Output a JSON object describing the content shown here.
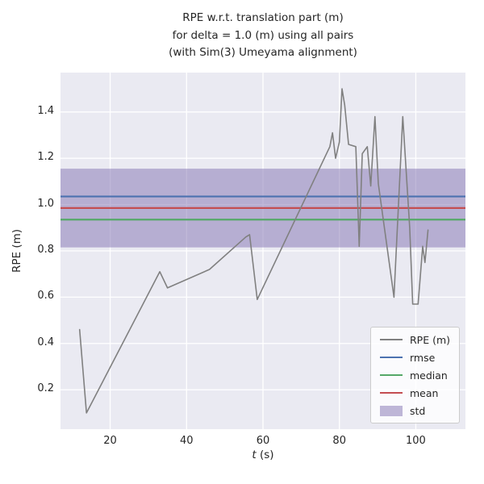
{
  "figure": {
    "title_lines": [
      "RPE w.r.t. translation part (m)",
      "for delta = 1.0 (m) using all pairs",
      "(with Sim(3) Umeyama alignment)"
    ],
    "ylabel": "RPE (m)",
    "xlabel_var": "t",
    "xlabel_unit": " (s)"
  },
  "legend": {
    "items": [
      {
        "label": "RPE (m)",
        "type": "line",
        "color": "#808080"
      },
      {
        "label": "rmse",
        "type": "line",
        "color": "#4c72b0"
      },
      {
        "label": "median",
        "type": "line",
        "color": "#55a868"
      },
      {
        "label": "mean",
        "type": "line",
        "color": "#c44e52"
      },
      {
        "label": "std",
        "type": "patch",
        "color": "#8172b2"
      }
    ]
  },
  "chart_data": {
    "type": "line",
    "title": "RPE w.r.t. translation part (m) for delta = 1.0 (m) using all pairs (with Sim(3) Umeyama alignment)",
    "xlabel": "t (s)",
    "ylabel": "RPE (m)",
    "xlim": [
      7,
      113
    ],
    "ylim": [
      0.03,
      1.57
    ],
    "xticks": [
      20,
      40,
      60,
      80,
      100
    ],
    "yticks": [
      0.2,
      0.4,
      0.6,
      0.8,
      1.0,
      1.2,
      1.4
    ],
    "grid": true,
    "grid_color": "#ffffff",
    "plot_bg": "#eaeaf2",
    "legend_position": "lower right",
    "series": [
      {
        "name": "RPE (m)",
        "color": "#808080",
        "x": [
          12,
          13.8,
          33,
          35,
          46,
          55.5,
          56.5,
          58.5,
          77.5,
          78.2,
          79,
          80,
          80.7,
          81.4,
          82.4,
          84.3,
          85.2,
          86,
          87.3,
          88.2,
          89.3,
          90.2,
          94.3,
          96.6,
          98.4,
          99.2,
          100.6,
          101.8,
          102.4,
          103.2
        ],
        "y": [
          0.46,
          0.1,
          0.71,
          0.64,
          0.72,
          0.86,
          0.87,
          0.59,
          1.25,
          1.31,
          1.2,
          1.27,
          1.5,
          1.43,
          1.26,
          1.25,
          0.82,
          1.22,
          1.25,
          1.08,
          1.38,
          1.09,
          0.6,
          1.38,
          0.9,
          0.57,
          0.57,
          0.82,
          0.75,
          0.89
        ]
      }
    ],
    "stats": {
      "rmse": {
        "value": 1.035,
        "color": "#4c72b0"
      },
      "mean": {
        "value": 0.985,
        "color": "#c44e52"
      },
      "median": {
        "value": 0.935,
        "color": "#55a868"
      },
      "std_band": {
        "low": 0.815,
        "high": 1.155,
        "std": 0.17,
        "color": "#8172b2",
        "opacity": 0.5
      }
    }
  }
}
